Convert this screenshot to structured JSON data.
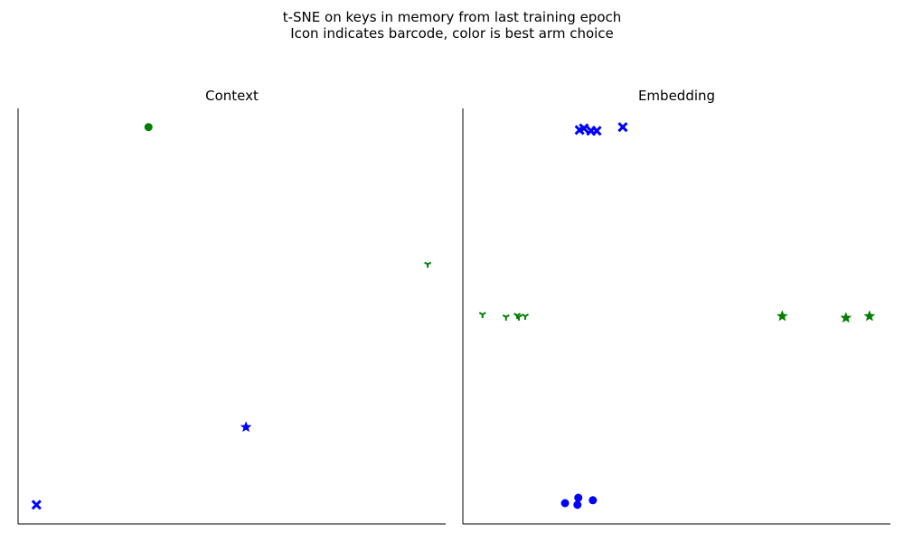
{
  "figure": {
    "suptitle_line1": "t-SNE on keys in memory from last training epoch",
    "suptitle_line2": "Icon indicates barcode, color is best arm choice"
  },
  "colors": {
    "green": "#008000",
    "blue": "#0000ff",
    "axis": "#000000"
  },
  "chart_data": [
    {
      "type": "scatter",
      "title": "Context",
      "xlabel": "",
      "ylabel": "",
      "xlim": [
        0,
        100
      ],
      "ylim": [
        0,
        100
      ],
      "grid": false,
      "ticks": false,
      "points": [
        {
          "x": 30.5,
          "y": 95.5,
          "marker": "circle",
          "color": "green"
        },
        {
          "x": 95.8,
          "y": 62.5,
          "marker": "tri_down",
          "color": "green"
        },
        {
          "x": 53.3,
          "y": 23.3,
          "marker": "star",
          "color": "blue"
        },
        {
          "x": 4.3,
          "y": 4.6,
          "marker": "x",
          "color": "blue"
        }
      ]
    },
    {
      "type": "scatter",
      "title": "Embedding",
      "xlabel": "",
      "ylabel": "",
      "xlim": [
        0,
        100
      ],
      "ylim": [
        0,
        100
      ],
      "grid": false,
      "ticks": false,
      "points": [
        {
          "x": 27.3,
          "y": 94.8,
          "marker": "x",
          "color": "blue"
        },
        {
          "x": 28.3,
          "y": 95.2,
          "marker": "x",
          "color": "blue"
        },
        {
          "x": 30.0,
          "y": 94.6,
          "marker": "x",
          "color": "blue"
        },
        {
          "x": 31.3,
          "y": 94.6,
          "marker": "x",
          "color": "blue"
        },
        {
          "x": 37.4,
          "y": 95.5,
          "marker": "x",
          "color": "blue"
        },
        {
          "x": 4.6,
          "y": 50.4,
          "marker": "tri_down",
          "color": "green"
        },
        {
          "x": 10.1,
          "y": 49.8,
          "marker": "tri_down",
          "color": "green"
        },
        {
          "x": 12.7,
          "y": 50.2,
          "marker": "tri_down",
          "color": "green"
        },
        {
          "x": 13.1,
          "y": 49.8,
          "marker": "tri_down",
          "color": "green"
        },
        {
          "x": 14.6,
          "y": 50.0,
          "marker": "tri_down",
          "color": "green"
        },
        {
          "x": 74.7,
          "y": 50.0,
          "marker": "star",
          "color": "green"
        },
        {
          "x": 89.6,
          "y": 49.6,
          "marker": "star",
          "color": "green"
        },
        {
          "x": 95.1,
          "y": 50.0,
          "marker": "star",
          "color": "green"
        },
        {
          "x": 23.9,
          "y": 5.0,
          "marker": "circle",
          "color": "blue"
        },
        {
          "x": 27.0,
          "y": 6.3,
          "marker": "circle",
          "color": "blue"
        },
        {
          "x": 26.8,
          "y": 4.6,
          "marker": "circle",
          "color": "blue"
        },
        {
          "x": 30.4,
          "y": 5.7,
          "marker": "circle",
          "color": "blue"
        }
      ]
    }
  ]
}
